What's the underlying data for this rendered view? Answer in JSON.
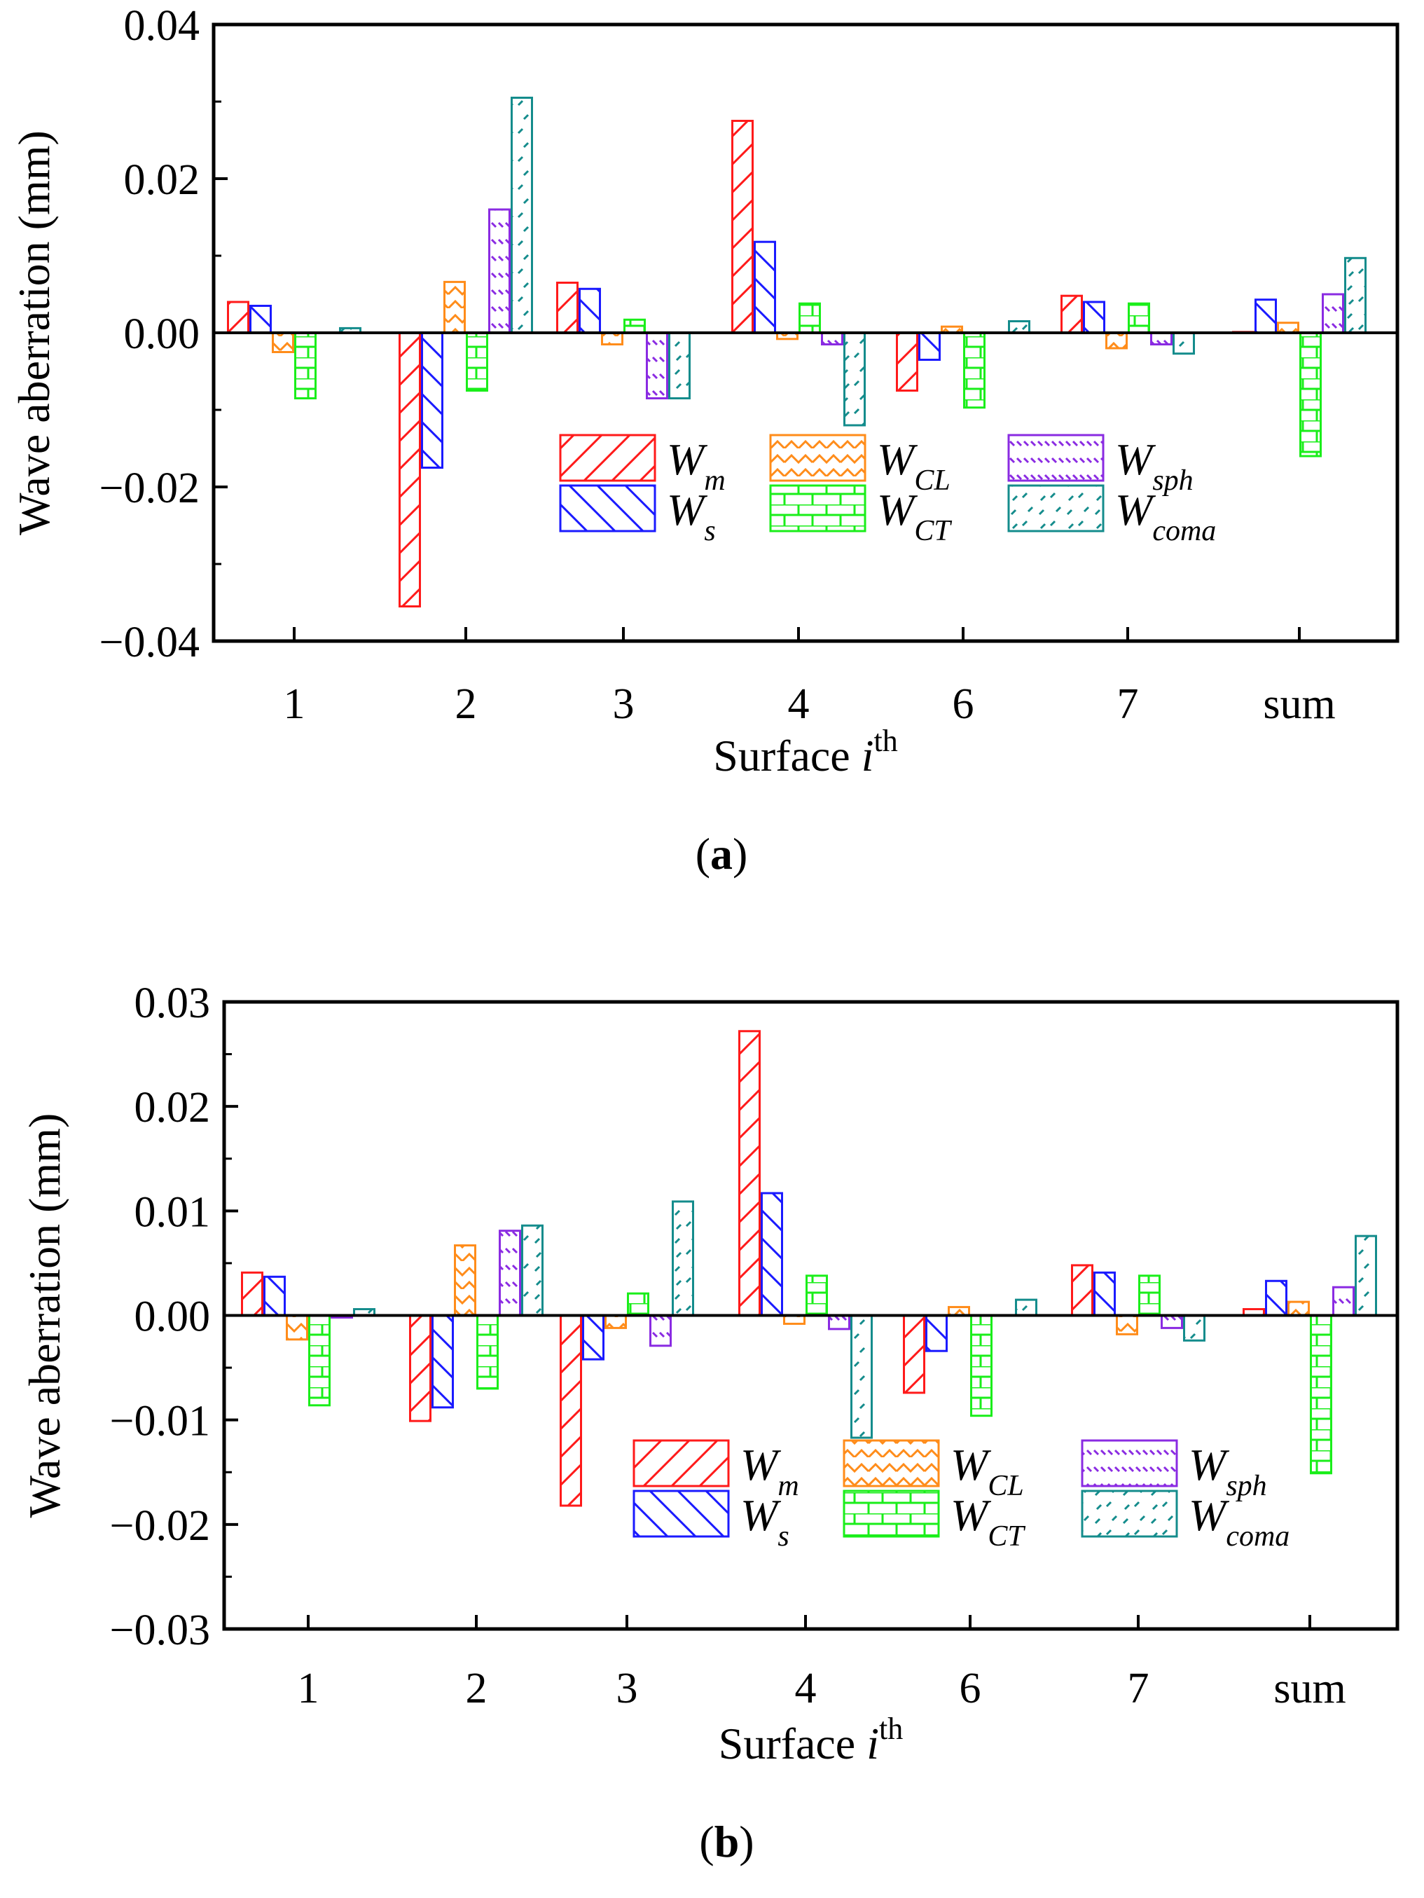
{
  "chart_data": [
    {
      "type": "bar",
      "panel_label": "a",
      "ylabel": "Wave aberration (mm)",
      "xlabel": "Surface",
      "xlabel_var": "i",
      "xlabel_sup": "th",
      "ylim": [
        -0.04,
        0.04
      ],
      "yticks": [
        0.04,
        0.02,
        0.0,
        -0.02,
        -0.04
      ],
      "ytick_labels": [
        "0.04",
        "0.02",
        "0.00",
        "−0.02",
        "−0.04"
      ],
      "categories": [
        "1",
        "2",
        "3",
        "4",
        "6",
        "7",
        "sum"
      ],
      "series": [
        {
          "name": "W",
          "sub": "m",
          "color": "#ff1a1a",
          "pattern": "fwd",
          "values": [
            0.004,
            -0.0355,
            0.0065,
            0.0275,
            -0.0075,
            0.0048,
            0.0001
          ]
        },
        {
          "name": "W",
          "sub": "s",
          "color": "#1a1aff",
          "pattern": "back",
          "values": [
            0.0035,
            -0.0175,
            0.0057,
            0.0118,
            -0.0035,
            0.004,
            0.0043
          ]
        },
        {
          "name": "W",
          "sub": "CL",
          "color": "#ff8c1a",
          "pattern": "zig",
          "values": [
            -0.0025,
            0.0066,
            -0.0015,
            -0.0008,
            0.0008,
            -0.002,
            0.0013
          ]
        },
        {
          "name": "W",
          "sub": "CT",
          "color": "#1aee1a",
          "pattern": "brick",
          "values": [
            -0.0085,
            -0.0075,
            0.0017,
            0.0038,
            -0.0097,
            0.0038,
            -0.016
          ]
        },
        {
          "name": "W",
          "sub": "sph",
          "color": "#8a2be2",
          "pattern": "dash",
          "values": [
            0.0,
            0.016,
            -0.0085,
            -0.0015,
            0.0,
            -0.0015,
            0.005
          ]
        },
        {
          "name": "W",
          "sub": "coma",
          "color": "#148c8c",
          "pattern": "dots",
          "values": [
            0.0006,
            0.0305,
            -0.0085,
            -0.012,
            0.0015,
            -0.0027,
            0.0097
          ]
        }
      ]
    },
    {
      "type": "bar",
      "panel_label": "b",
      "ylabel": "Wave aberration (mm)",
      "xlabel": "Surface",
      "xlabel_var": "i",
      "xlabel_sup": "th",
      "ylim": [
        -0.03,
        0.03
      ],
      "yticks": [
        0.03,
        0.02,
        0.01,
        0.0,
        -0.01,
        -0.02,
        -0.03
      ],
      "ytick_labels": [
        "0.03",
        "0.02",
        "0.01",
        "0.00",
        "−0.01",
        "−0.02",
        "−0.03"
      ],
      "categories": [
        "1",
        "2",
        "3",
        "4",
        "6",
        "7",
        "sum"
      ],
      "series": [
        {
          "name": "W",
          "sub": "m",
          "color": "#ff1a1a",
          "pattern": "fwd",
          "values": [
            0.0041,
            -0.0101,
            -0.0182,
            0.0272,
            -0.0074,
            0.0048,
            0.0006
          ]
        },
        {
          "name": "W",
          "sub": "s",
          "color": "#1a1aff",
          "pattern": "back",
          "values": [
            0.0037,
            -0.0088,
            -0.0042,
            0.0117,
            -0.0034,
            0.0041,
            0.0033
          ]
        },
        {
          "name": "W",
          "sub": "CL",
          "color": "#ff8c1a",
          "pattern": "zig",
          "values": [
            -0.0023,
            0.0067,
            -0.0012,
            -0.0008,
            0.0008,
            -0.0018,
            0.0013
          ]
        },
        {
          "name": "W",
          "sub": "CT",
          "color": "#1aee1a",
          "pattern": "brick",
          "values": [
            -0.0086,
            -0.007,
            0.0021,
            0.0038,
            -0.0096,
            0.0038,
            -0.0151
          ]
        },
        {
          "name": "W",
          "sub": "sph",
          "color": "#8a2be2",
          "pattern": "dash",
          "values": [
            -0.0002,
            0.0081,
            -0.0029,
            -0.0013,
            0.0,
            -0.0012,
            0.0027
          ]
        },
        {
          "name": "W",
          "sub": "coma",
          "color": "#148c8c",
          "pattern": "dots",
          "values": [
            0.0006,
            0.0086,
            0.0109,
            -0.0117,
            0.0015,
            -0.0024,
            0.0076
          ]
        }
      ]
    }
  ]
}
